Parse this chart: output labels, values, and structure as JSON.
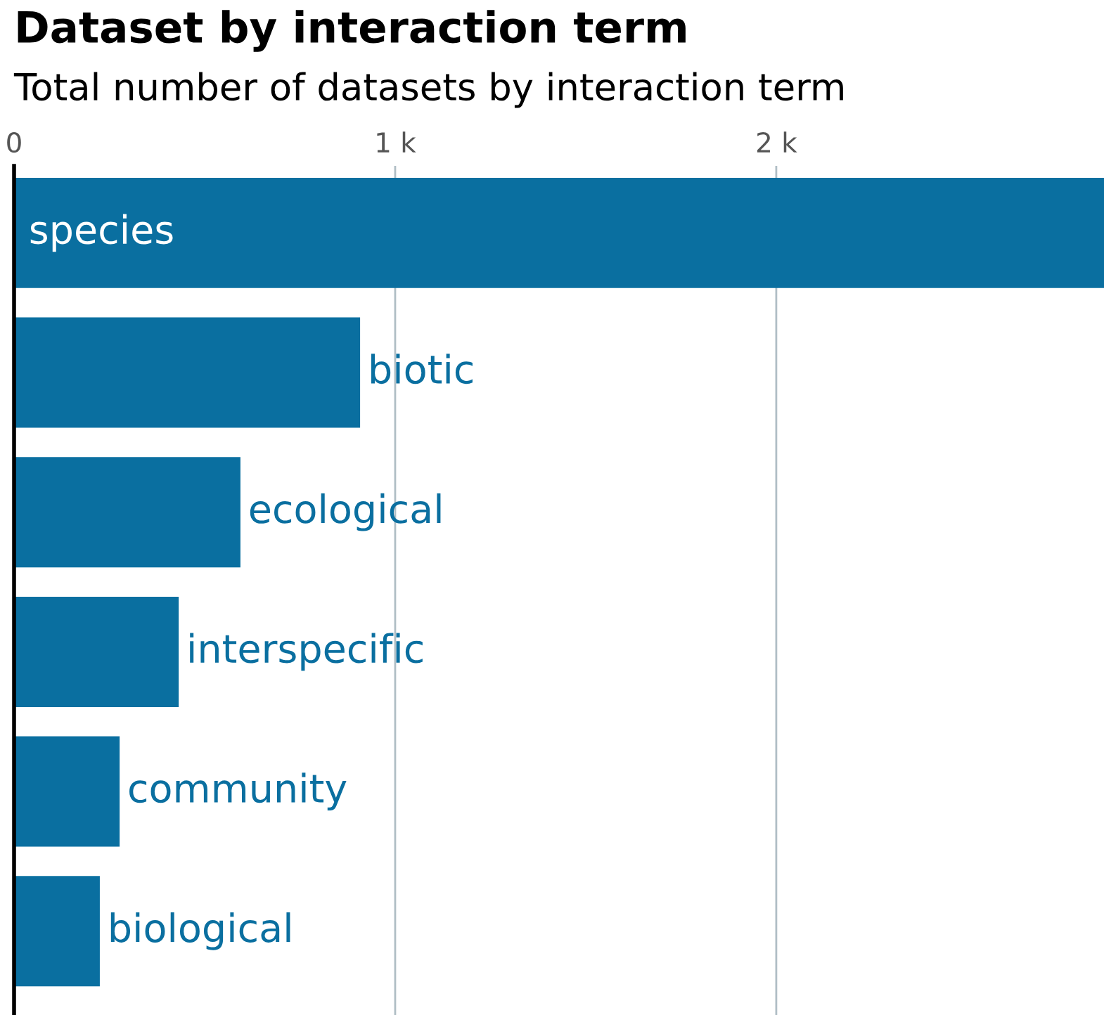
{
  "chart_data": {
    "type": "bar",
    "orientation": "horizontal",
    "title": "Dataset by interaction term",
    "subtitle": "Total number of datasets by interaction term",
    "categories": [
      "species",
      "biotic",
      "ecological",
      "interspecific",
      "community",
      "biological"
    ],
    "values": [
      2860,
      908,
      594,
      432,
      277,
      225
    ],
    "color": "#0a6fa0",
    "xlim": [
      0,
      2860
    ],
    "xticks": [
      0,
      {
        "value": 1000,
        "label": "1 k"
      },
      {
        "value": 2000,
        "label": "2 k"
      }
    ],
    "grid": "x",
    "tick_labels": "x"
  }
}
